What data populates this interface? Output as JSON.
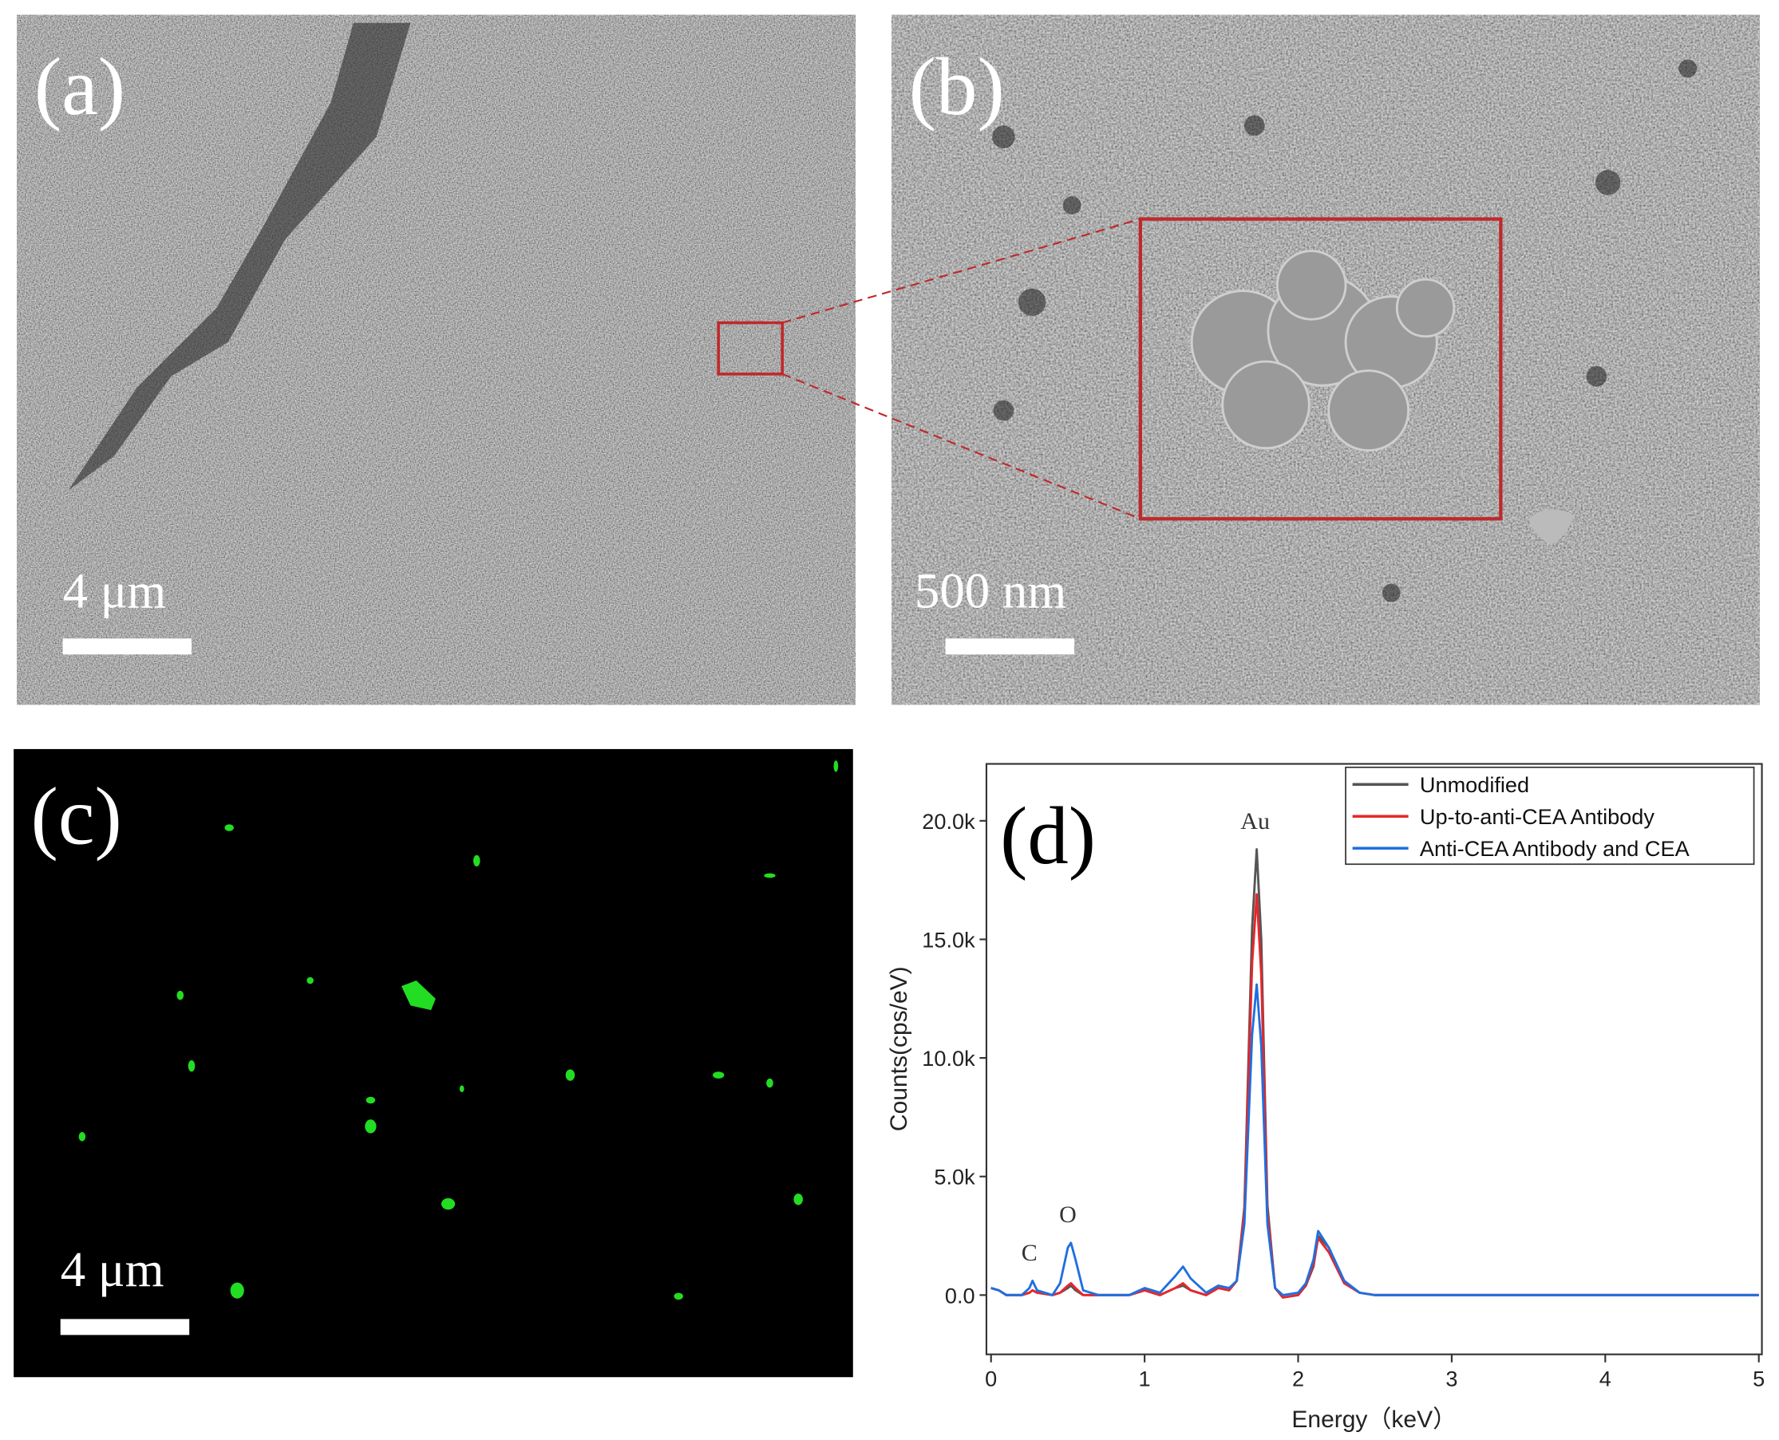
{
  "panels": {
    "a": {
      "label": "(a)",
      "scale_bar": "4 μm"
    },
    "b": {
      "label": "(b)",
      "scale_bar": "500 nm"
    },
    "c": {
      "label": "(c)",
      "scale_bar": "4 μm"
    }
  },
  "chart_data": {
    "type": "line",
    "panel_label": "(d)",
    "x_label": "Energy（keV）",
    "y_label": "Counts(cps/eV)",
    "x": [
      0,
      0.05,
      0.1,
      0.2,
      0.25,
      0.27,
      0.3,
      0.4,
      0.45,
      0.5,
      0.52,
      0.55,
      0.6,
      0.7,
      0.9,
      1.0,
      1.05,
      1.1,
      1.2,
      1.25,
      1.3,
      1.4,
      1.48,
      1.55,
      1.6,
      1.65,
      1.7,
      1.73,
      1.76,
      1.8,
      1.85,
      1.9,
      2.0,
      2.05,
      2.1,
      2.13,
      2.2,
      2.3,
      2.4,
      2.5,
      3.0,
      3.5,
      4.0,
      4.5,
      5.0
    ],
    "series": [
      {
        "name": "Unmodified",
        "color": "#555555",
        "values": [
          300,
          200,
          0,
          0,
          100,
          200,
          100,
          0,
          100,
          300,
          400,
          200,
          0,
          0,
          0,
          200,
          100,
          0,
          300,
          400,
          200,
          0,
          300,
          200,
          600,
          3700,
          15500,
          18800,
          15000,
          3800,
          300,
          -100,
          0,
          400,
          1200,
          2500,
          2000,
          600,
          100,
          0,
          0,
          0,
          0,
          0,
          0
        ]
      },
      {
        "name": "Up-to-anti-CEA Antibody",
        "color": "#e8262b",
        "values": [
          300,
          200,
          0,
          0,
          100,
          200,
          100,
          0,
          100,
          400,
          500,
          300,
          0,
          0,
          0,
          200,
          100,
          0,
          300,
          500,
          200,
          0,
          300,
          200,
          600,
          3500,
          14000,
          16900,
          13500,
          3500,
          300,
          -100,
          0,
          400,
          1300,
          2400,
          1800,
          500,
          100,
          0,
          0,
          0,
          0,
          0,
          0
        ]
      },
      {
        "name": "Anti-CEA Antibody and CEA",
        "color": "#1f6fe0",
        "values": [
          300,
          200,
          0,
          0,
          300,
          600,
          200,
          0,
          500,
          2000,
          2200,
          1500,
          200,
          0,
          0,
          300,
          200,
          100,
          800,
          1200,
          700,
          100,
          400,
          300,
          600,
          3000,
          11000,
          13100,
          10500,
          3000,
          300,
          0,
          100,
          500,
          1500,
          2700,
          2000,
          600,
          100,
          0,
          0,
          0,
          0,
          0,
          0
        ]
      }
    ],
    "annotations": [
      {
        "text": "C",
        "x": 0.25
      },
      {
        "text": "O",
        "x": 0.5
      },
      {
        "text": "Au",
        "x": 1.72
      }
    ],
    "xlim": [
      -0.03,
      5.02
    ],
    "xticks": [
      0,
      1,
      2,
      3,
      4,
      5
    ],
    "ylim": [
      -2500,
      22400
    ],
    "yticks": [
      {
        "value": 0,
        "label": "0.0"
      },
      {
        "value": 5000,
        "label": "5.0k"
      },
      {
        "value": 10000,
        "label": "10.0k"
      },
      {
        "value": 15000,
        "label": "15.0k"
      },
      {
        "value": 20000,
        "label": "20.0k"
      }
    ],
    "grid": false,
    "legend": "upper right"
  }
}
